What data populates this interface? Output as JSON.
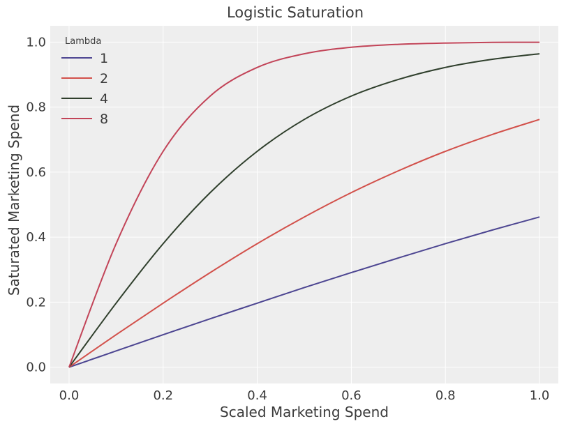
{
  "chart_data": {
    "type": "line",
    "title": "Logistic Saturation",
    "xlabel": "Scaled Marketing Spend",
    "ylabel": "Saturated Marketing Spend",
    "xlim": [
      -0.04,
      1.04
    ],
    "ylim": [
      -0.05,
      1.05
    ],
    "x_ticks": [
      0.0,
      0.2,
      0.4,
      0.6,
      0.8,
      1.0
    ],
    "x_tick_labels": [
      "0.0",
      "0.2",
      "0.4",
      "0.6",
      "0.8",
      "1.0"
    ],
    "y_ticks": [
      0.0,
      0.2,
      0.4,
      0.6,
      0.8,
      1.0
    ],
    "y_tick_labels": [
      "0.0",
      "0.2",
      "0.4",
      "0.6",
      "0.8",
      "1.0"
    ],
    "grid": true,
    "legend": {
      "title": "Lambda",
      "placement": "top-left"
    },
    "x": [
      0.0,
      0.1,
      0.2,
      0.3,
      0.4,
      0.5,
      0.6,
      0.7,
      0.8,
      0.9,
      1.0
    ],
    "series": [
      {
        "name": "1",
        "color": "#4c4591",
        "values": [
          0.0,
          0.05,
          0.1,
          0.149,
          0.197,
          0.245,
          0.291,
          0.336,
          0.38,
          0.422,
          0.462
        ]
      },
      {
        "name": "2",
        "color": "#d2504a",
        "values": [
          0.0,
          0.1,
          0.197,
          0.291,
          0.38,
          0.462,
          0.537,
          0.604,
          0.664,
          0.716,
          0.762
        ]
      },
      {
        "name": "4",
        "color": "#2f3f2c",
        "values": [
          0.0,
          0.197,
          0.38,
          0.537,
          0.664,
          0.762,
          0.834,
          0.885,
          0.922,
          0.947,
          0.964
        ]
      },
      {
        "name": "8",
        "color": "#c24458",
        "values": [
          0.0,
          0.38,
          0.664,
          0.834,
          0.922,
          0.964,
          0.984,
          0.993,
          0.997,
          0.999,
          0.9993
        ]
      }
    ]
  }
}
